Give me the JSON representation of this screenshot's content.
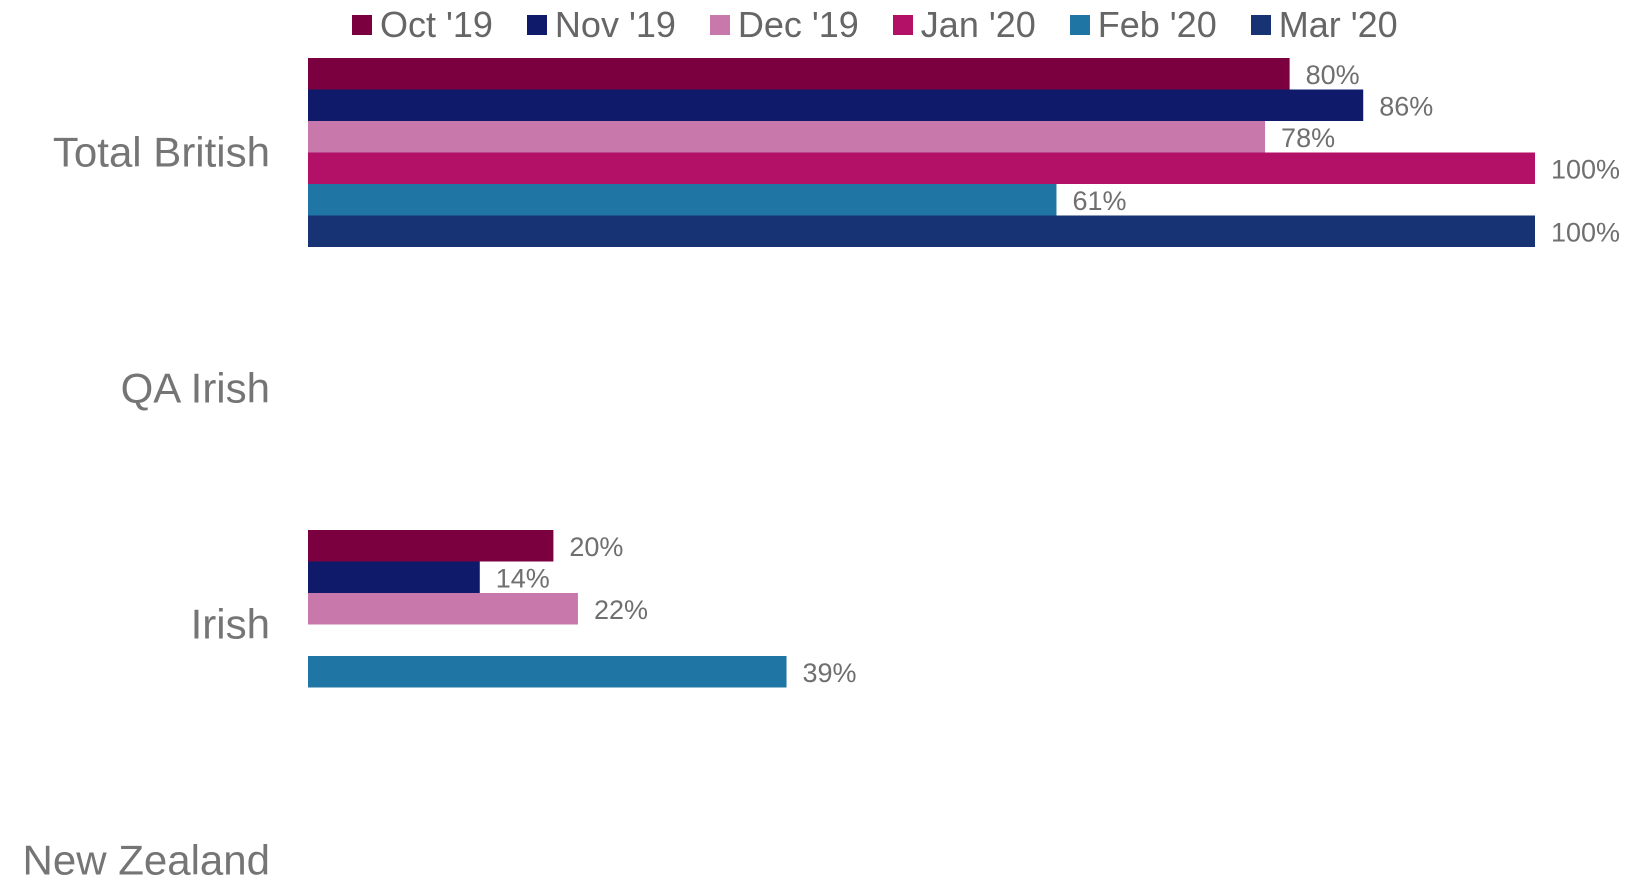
{
  "chart_data": {
    "type": "bar",
    "orientation": "horizontal",
    "categories": [
      "Total British",
      "QA Irish",
      "Irish",
      "New Zealand"
    ],
    "series": [
      {
        "name": "Oct '19",
        "color": "#7a0040",
        "values": [
          80,
          null,
          20,
          null
        ],
        "labels": [
          "80%",
          "",
          "20%",
          ""
        ]
      },
      {
        "name": "Nov '19",
        "color": "#0f1a6b",
        "values": [
          86,
          null,
          14,
          null
        ],
        "labels": [
          "86%",
          "",
          "14%",
          ""
        ]
      },
      {
        "name": "Dec '19",
        "color": "#c878aa",
        "values": [
          78,
          null,
          22,
          null
        ],
        "labels": [
          "78%",
          "",
          "22%",
          ""
        ]
      },
      {
        "name": "Jan '20",
        "color": "#b31168",
        "values": [
          100,
          null,
          null,
          null
        ],
        "labels": [
          "100%",
          "",
          "",
          ""
        ]
      },
      {
        "name": "Feb '20",
        "color": "#1f75a3",
        "values": [
          61,
          null,
          39,
          null
        ],
        "labels": [
          "61%",
          "",
          "39%",
          ""
        ]
      },
      {
        "name": "Mar '20",
        "color": "#173373",
        "values": [
          100,
          null,
          null,
          null
        ],
        "labels": [
          "100%",
          "",
          "",
          ""
        ]
      }
    ],
    "xlim": [
      0,
      100
    ],
    "grid": false,
    "legend_position": "top"
  }
}
